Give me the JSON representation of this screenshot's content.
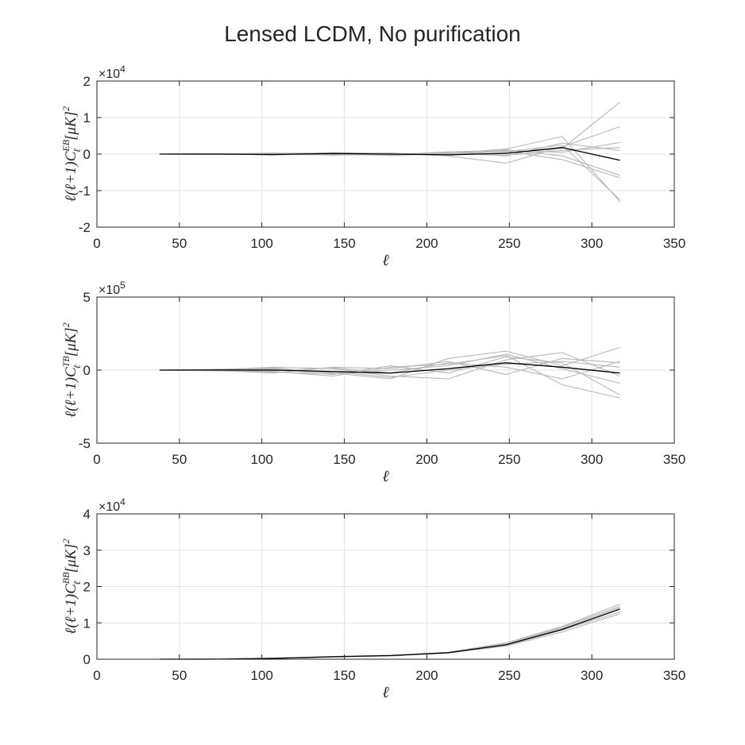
{
  "figure": {
    "title": "Lensed LCDM, No purification"
  },
  "chart_data": [
    {
      "type": "line",
      "title": "",
      "xlabel": "ℓ",
      "ylabel": "ℓ(ℓ+1)C_ℓ^{EB}[μK]²",
      "ylabel_parts": {
        "prefix": "ℓ(ℓ+1)C",
        "sub": "ℓ",
        "sup": "EB",
        "suffix": "[μK]",
        "power": "2"
      },
      "xlim": [
        0,
        350
      ],
      "ylim": [
        -20000,
        20000
      ],
      "xticks": [
        0,
        50,
        100,
        150,
        200,
        250,
        300,
        350
      ],
      "xticklabels": [
        "0",
        "50",
        "100",
        "150",
        "200",
        "250",
        "300",
        "350"
      ],
      "yticks": [
        -20000,
        -10000,
        0,
        10000,
        20000
      ],
      "yticklabels": [
        "-2",
        "-1",
        "0",
        "1",
        "2"
      ],
      "exponent_label": {
        "base": "×10",
        "power": "4"
      },
      "grid": true,
      "x": [
        38,
        73,
        107,
        143,
        178,
        213,
        248,
        282,
        317
      ],
      "series": [
        {
          "values": [
            0,
            100,
            -300,
            400,
            200,
            -300,
            300,
            1500,
            14200
          ],
          "color": "#b8b8b8"
        },
        {
          "values": [
            0,
            -100,
            200,
            300,
            -400,
            200,
            1400,
            4800,
            -13000
          ],
          "color": "#b8b8b8"
        },
        {
          "values": [
            0,
            0,
            -100,
            -200,
            300,
            -500,
            -2500,
            2000,
            7500
          ],
          "color": "#b8b8b8"
        },
        {
          "values": [
            0,
            100,
            0,
            100,
            -200,
            600,
            1000,
            500,
            3200
          ],
          "color": "#b8b8b8"
        },
        {
          "values": [
            0,
            -50,
            300,
            -300,
            100,
            -200,
            800,
            -1500,
            -6500
          ],
          "color": "#b8b8b8"
        },
        {
          "values": [
            0,
            50,
            -200,
            200,
            -100,
            400,
            -500,
            3000,
            1000
          ],
          "color": "#b8b8b8"
        },
        {
          "values": [
            0,
            0,
            100,
            0,
            200,
            -400,
            1200,
            -500,
            -5800
          ],
          "color": "#b8b8b8"
        },
        {
          "values": [
            0,
            -100,
            -100,
            300,
            0,
            300,
            600,
            2500,
            -12500
          ],
          "color": "#b8b8b8"
        },
        {
          "values": [
            0,
            50,
            200,
            -100,
            -300,
            100,
            -300,
            1000,
            1800
          ],
          "color": "#b8b8b8"
        },
        {
          "values": [
            0,
            0,
            -100,
            150,
            0,
            -200,
            200,
            1800,
            -1700
          ],
          "color": "#000000"
        }
      ]
    },
    {
      "type": "line",
      "title": "",
      "xlabel": "ℓ",
      "ylabel": "ℓ(ℓ+1)C_ℓ^{TB}[μK]²",
      "ylabel_parts": {
        "prefix": "ℓ(ℓ+1)C",
        "sub": "ℓ",
        "sup": "TB",
        "suffix": "[μK]",
        "power": "2"
      },
      "xlim": [
        0,
        350
      ],
      "ylim": [
        -500000,
        500000
      ],
      "xticks": [
        0,
        50,
        100,
        150,
        200,
        250,
        300,
        350
      ],
      "xticklabels": [
        "0",
        "50",
        "100",
        "150",
        "200",
        "250",
        "300",
        "350"
      ],
      "yticks": [
        -500000,
        0,
        500000
      ],
      "yticklabels": [
        "-5",
        "0",
        "5"
      ],
      "exponent_label": {
        "base": "×10",
        "power": "5"
      },
      "grid": true,
      "x": [
        38,
        73,
        107,
        143,
        178,
        213,
        248,
        282,
        317
      ],
      "series": [
        {
          "values": [
            0,
            5000,
            15000,
            -20000,
            -60000,
            80000,
            130000,
            30000,
            155000
          ],
          "color": "#b8b8b8"
        },
        {
          "values": [
            0,
            -5000,
            -10000,
            -40000,
            20000,
            40000,
            100000,
            -100000,
            -190000
          ],
          "color": "#b8b8b8"
        },
        {
          "values": [
            0,
            3000,
            20000,
            10000,
            -40000,
            -60000,
            70000,
            120000,
            -40000
          ],
          "color": "#b8b8b8"
        },
        {
          "values": [
            0,
            -2000,
            -20000,
            20000,
            10000,
            60000,
            -30000,
            80000,
            50000
          ],
          "color": "#b8b8b8"
        },
        {
          "values": [
            0,
            4000,
            10000,
            -30000,
            30000,
            -20000,
            90000,
            50000,
            -170000
          ],
          "color": "#b8b8b8"
        },
        {
          "values": [
            0,
            -3000,
            -5000,
            15000,
            -20000,
            50000,
            20000,
            -60000,
            60000
          ],
          "color": "#b8b8b8"
        },
        {
          "values": [
            0,
            2000,
            5000,
            -10000,
            -50000,
            0,
            40000,
            60000,
            20000
          ],
          "color": "#b8b8b8"
        },
        {
          "values": [
            0,
            0,
            -15000,
            -25000,
            0,
            30000,
            110000,
            10000,
            -90000
          ],
          "color": "#b8b8b8"
        },
        {
          "values": [
            0,
            1000,
            0,
            -10000,
            -20000,
            10000,
            50000,
            20000,
            -20000
          ],
          "color": "#000000"
        }
      ]
    },
    {
      "type": "line",
      "title": "",
      "xlabel": "ℓ",
      "ylabel": "ℓ(ℓ+1)C_ℓ^{BB}[μK]²",
      "ylabel_parts": {
        "prefix": "ℓ(ℓ+1)C",
        "sub": "ℓ",
        "sup": "BB",
        "suffix": "[μK]",
        "power": "2"
      },
      "xlim": [
        0,
        350
      ],
      "ylim": [
        0,
        40000
      ],
      "xticks": [
        0,
        50,
        100,
        150,
        200,
        250,
        300,
        350
      ],
      "xticklabels": [
        "0",
        "50",
        "100",
        "150",
        "200",
        "250",
        "300",
        "350"
      ],
      "yticks": [
        0,
        10000,
        20000,
        30000,
        40000
      ],
      "yticklabels": [
        "0",
        "1",
        "2",
        "3",
        "4"
      ],
      "exponent_label": {
        "base": "×10",
        "power": "4"
      },
      "grid": true,
      "x": [
        38,
        73,
        107,
        143,
        178,
        213,
        248,
        282,
        317
      ],
      "series": [
        {
          "values": [
            0,
            50,
            250,
            750,
            1100,
            1900,
            4500,
            9000,
            15200
          ],
          "color": "#b8b8b8"
        },
        {
          "values": [
            0,
            30,
            200,
            600,
            900,
            1700,
            3600,
            7500,
            12500
          ],
          "color": "#b8b8b8"
        },
        {
          "values": [
            0,
            40,
            300,
            700,
            1000,
            1800,
            4000,
            8500,
            14200
          ],
          "color": "#b8b8b8"
        },
        {
          "values": [
            0,
            20,
            180,
            650,
            950,
            1750,
            3800,
            8000,
            13000
          ],
          "color": "#b8b8b8"
        },
        {
          "values": [
            0,
            35,
            220,
            720,
            1050,
            1850,
            4200,
            8800,
            14600
          ],
          "color": "#b8b8b8"
        },
        {
          "values": [
            0,
            30,
            230,
            680,
            1000,
            1800,
            4000,
            8200,
            13800
          ],
          "color": "#000000"
        }
      ]
    }
  ]
}
